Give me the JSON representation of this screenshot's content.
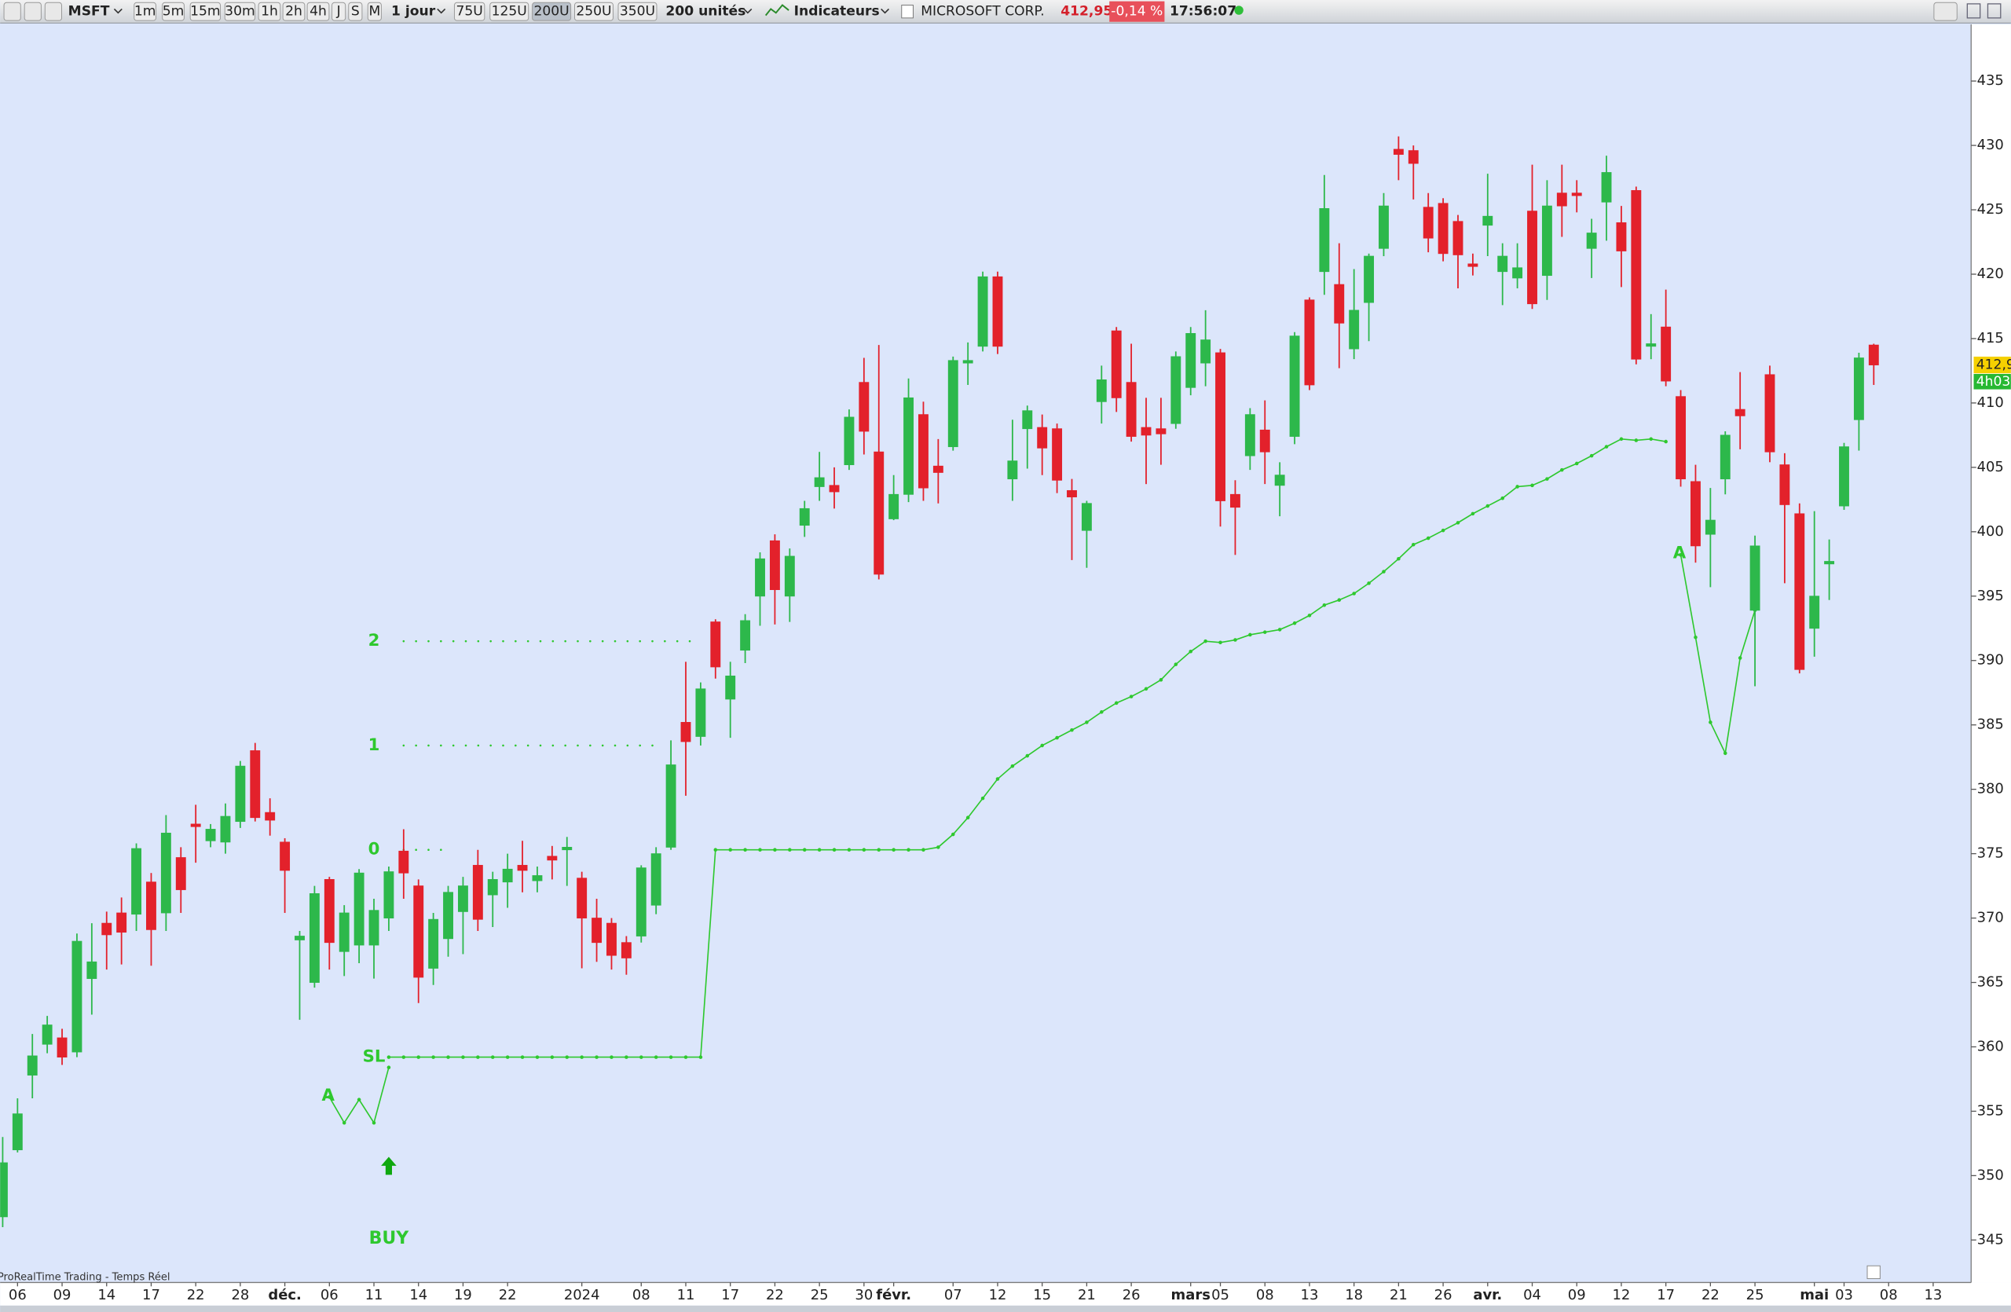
{
  "toolbar": {
    "symbol": "MSFT",
    "intervals": [
      "1m",
      "5m",
      "15m",
      "30m",
      "1h",
      "2h",
      "4h",
      "J",
      "S",
      "M"
    ],
    "period": "1 jour",
    "units": [
      "75U",
      "125U",
      "200U",
      "250U",
      "350U"
    ],
    "unit_count": "200 unités",
    "indicators": "Indicateurs",
    "instrument": "MICROSOFT CORP.",
    "price": "412,95",
    "change": "-0,14 %",
    "time": "17:56:07"
  },
  "footer": "ProRealTime Trading - Temps Réel",
  "chart_data": {
    "type": "candlestick",
    "categories": [
      null,
      "06",
      null,
      null,
      "09",
      null,
      null,
      "14",
      null,
      null,
      "17",
      null,
      null,
      "22",
      null,
      null,
      "28",
      null,
      null,
      "déc.",
      null,
      null,
      "06",
      null,
      null,
      "11",
      null,
      null,
      "14",
      null,
      null,
      "19",
      null,
      null,
      "22",
      null,
      null,
      null,
      null,
      "2024",
      null,
      null,
      null,
      "08",
      null,
      null,
      "11",
      null,
      null,
      "17",
      null,
      null,
      "22",
      null,
      null,
      "25",
      null,
      null,
      "30",
      null,
      "févr.",
      null,
      null,
      null,
      "07",
      null,
      null,
      "12",
      null,
      null,
      "15",
      null,
      null,
      "21",
      null,
      null,
      "26",
      null,
      null,
      null,
      "mars",
      null,
      "05",
      null,
      null,
      "08",
      null,
      null,
      "13",
      null,
      null,
      "18",
      null,
      null,
      "21",
      null,
      null,
      "26",
      null,
      null,
      "avr.",
      null,
      null,
      "04",
      null,
      null,
      "09",
      null,
      null,
      "12",
      null,
      null,
      "17",
      null,
      null,
      "22",
      null,
      null,
      "25",
      null,
      null,
      null,
      "mai",
      null,
      "03",
      null,
      null,
      "08",
      null,
      null,
      "13"
    ],
    "open": [
      346.8,
      352,
      357.8,
      360.2,
      360.7,
      359.6,
      365.3,
      369.6,
      370.4,
      370.3,
      372.8,
      370.4,
      374.7,
      377.3,
      376,
      375.9,
      377.5,
      383,
      378.2,
      375.9,
      368.3,
      365,
      373,
      367.4,
      367.9,
      367.9,
      370,
      375.2,
      372.5,
      366.1,
      368.4,
      370.5,
      374.1,
      371.8,
      372.8,
      374.1,
      372.9,
      374.8,
      375.3,
      373.1,
      370,
      369.6,
      368.1,
      368.6,
      371,
      375.5,
      385.2,
      384.1,
      393,
      387,
      390.8,
      395,
      399.3,
      395,
      400.5,
      403.5,
      403.6,
      405.2,
      411.6,
      406.2,
      401,
      402.9,
      409.1,
      405.1,
      406.6,
      413.1,
      414.4,
      419.8,
      404.1,
      408,
      408.1,
      408,
      403.2,
      400.1,
      410.1,
      415.6,
      411.6,
      408.1,
      408,
      408.4,
      411.2,
      413.1,
      413.9,
      402.9,
      405.9,
      407.9,
      403.6,
      407.4,
      418,
      420.2,
      419.2,
      414.2,
      417.8,
      422,
      429.7,
      429.6,
      425.2,
      425.5,
      424.1,
      420.8,
      423.8,
      420.2,
      419.7,
      424.9,
      419.9,
      426.3,
      426.3,
      422,
      425.6,
      424,
      426.5,
      414.4,
      415.9,
      410.5,
      403.9,
      399.8,
      404.1,
      409.5,
      393.9,
      412.2,
      405.2,
      401.4,
      392.5,
      397.5,
      402,
      408.7,
      414.5,
      null,
      null,
      null,
      null
    ],
    "high": [
      353,
      356,
      361,
      362.4,
      361.4,
      368.8,
      369.6,
      370.5,
      371.6,
      375.8,
      373.5,
      378,
      375.5,
      378.8,
      377.3,
      378.9,
      382.2,
      383.6,
      379.3,
      376.2,
      369,
      372.5,
      373.2,
      371,
      373.8,
      371.5,
      374,
      376.9,
      373,
      370.4,
      372.5,
      373.2,
      375.3,
      373.6,
      375,
      376,
      374,
      375.6,
      376.3,
      373.6,
      371.5,
      370,
      368.6,
      374.1,
      375.5,
      383.8,
      389.9,
      388.3,
      393.2,
      389.9,
      393.6,
      398.4,
      399.8,
      398.7,
      402.4,
      406.2,
      405,
      409.5,
      413.5,
      414.5,
      404.4,
      411.9,
      410.1,
      407.2,
      413.6,
      414.7,
      420.2,
      420.2,
      408.7,
      409.8,
      409.1,
      408.4,
      404.1,
      402.4,
      412.9,
      415.9,
      414.6,
      410.4,
      410.4,
      414,
      415.9,
      417.2,
      414.2,
      404,
      409.6,
      410.2,
      405.4,
      415.5,
      418.2,
      427.7,
      422.4,
      420.4,
      421.6,
      426.3,
      430.7,
      430,
      426.3,
      425.9,
      424.6,
      421.6,
      427.8,
      422.4,
      422.4,
      428.5,
      427.3,
      428.5,
      427.3,
      424.3,
      429.2,
      425.3,
      426.8,
      416.9,
      418.8,
      411,
      405.2,
      403.4,
      407.8,
      412.4,
      399.7,
      412.9,
      406.1,
      402.2,
      401.6,
      399.4,
      406.9,
      413.9,
      414.6,
      null,
      null,
      null,
      null
    ],
    "low": [
      346,
      351.8,
      356,
      359.5,
      358.6,
      359.2,
      362.5,
      366,
      366.4,
      369,
      366.3,
      369,
      370.4,
      374.3,
      375.5,
      375,
      377,
      377.5,
      376.4,
      370.4,
      362.1,
      364.6,
      366,
      365.5,
      366.5,
      365.3,
      369,
      371.5,
      363.4,
      364.8,
      367,
      367.2,
      369,
      369.3,
      370.8,
      372,
      372,
      373,
      372.5,
      366.1,
      366.6,
      366,
      365.6,
      368.1,
      370.3,
      375.3,
      379.5,
      383.4,
      388.6,
      384,
      389.8,
      392.7,
      392.8,
      393,
      399.6,
      402.4,
      401.8,
      404.8,
      406,
      396.3,
      400.9,
      402.3,
      402.4,
      402.2,
      406.3,
      411.4,
      414,
      413.8,
      402.4,
      404.9,
      404.4,
      403,
      397.8,
      397.2,
      408.4,
      409.3,
      407,
      403.7,
      405.2,
      408,
      410.6,
      411.3,
      400.4,
      398.2,
      404.8,
      403.7,
      401.2,
      406.8,
      411,
      418.4,
      412.7,
      413.4,
      414.8,
      421.4,
      427.3,
      425.8,
      421.7,
      421,
      418.9,
      419.9,
      421.4,
      417.6,
      418.9,
      417.3,
      418,
      422.9,
      424.8,
      419.7,
      422.6,
      419,
      413,
      413.4,
      411.3,
      403.5,
      397.6,
      395.7,
      402.9,
      406.4,
      388,
      405.4,
      396,
      389,
      390.3,
      394.7,
      401.7,
      406.3,
      411.4,
      null,
      null,
      null,
      null
    ],
    "close": [
      351,
      354.8,
      359.3,
      361.7,
      359.2,
      368.2,
      366.6,
      368.7,
      368.9,
      375.4,
      369.1,
      376.6,
      372.2,
      377.1,
      376.9,
      377.9,
      381.8,
      377.8,
      377.6,
      373.7,
      368.6,
      371.9,
      368.1,
      370.4,
      373.5,
      370.6,
      373.6,
      373.5,
      365.4,
      369.9,
      372,
      372.5,
      369.9,
      373,
      373.8,
      373.7,
      373.3,
      374.5,
      375.5,
      370,
      368.1,
      367.1,
      366.9,
      373.9,
      375,
      381.9,
      383.7,
      387.8,
      389.5,
      388.8,
      393.1,
      397.9,
      395.5,
      398.1,
      401.8,
      404.2,
      403.1,
      408.9,
      407.8,
      396.7,
      402.9,
      410.4,
      403.4,
      404.6,
      413.3,
      413.3,
      419.8,
      414.4,
      405.5,
      409.4,
      406.5,
      404,
      402.7,
      402.2,
      411.8,
      410.4,
      407.4,
      407.5,
      407.6,
      413.6,
      415.4,
      414.9,
      402.4,
      401.9,
      409.1,
      406.2,
      404.4,
      415.2,
      411.4,
      425.1,
      416.2,
      417.2,
      421.4,
      425.3,
      429.3,
      428.6,
      422.8,
      421.6,
      421.5,
      420.6,
      424.5,
      421.4,
      420.5,
      417.7,
      425.3,
      425.3,
      426.1,
      423.2,
      427.9,
      421.8,
      413.4,
      414.6,
      411.7,
      404.1,
      398.9,
      400.9,
      407.5,
      409,
      398.9,
      406.2,
      402.1,
      389.3,
      395,
      397.7,
      406.6,
      413.5,
      412.95,
      null,
      null,
      null,
      null
    ],
    "up_color": "#2db84b",
    "down_color": "#e3212b",
    "ylim": [
      341.7,
      439.3
    ],
    "yticks": [
      345,
      350,
      355,
      360,
      365,
      370,
      375,
      380,
      385,
      390,
      395,
      400,
      405,
      410,
      415,
      420,
      425,
      430,
      435
    ],
    "grid": false,
    "indicator": {
      "color": "#2ec82e",
      "values": [
        null,
        null,
        null,
        null,
        null,
        null,
        null,
        null,
        null,
        null,
        null,
        null,
        null,
        null,
        null,
        null,
        null,
        null,
        null,
        null,
        null,
        null,
        null,
        null,
        null,
        null,
        359.2,
        359.2,
        359.2,
        359.2,
        359.2,
        359.2,
        359.2,
        359.2,
        359.2,
        359.2,
        359.2,
        359.2,
        359.2,
        359.2,
        359.2,
        359.2,
        359.2,
        359.2,
        359.2,
        359.2,
        359.2,
        359.2,
        375.3,
        375.3,
        375.3,
        375.3,
        375.3,
        375.3,
        375.3,
        375.3,
        375.3,
        375.3,
        375.3,
        375.3,
        375.3,
        375.3,
        375.3,
        375.5,
        376.5,
        377.8,
        379.3,
        380.8,
        381.8,
        382.6,
        383.4,
        384,
        384.6,
        385.2,
        386,
        386.7,
        387.2,
        387.8,
        388.5,
        389.7,
        390.7,
        391.5,
        391.4,
        391.6,
        392,
        392.2,
        392.4,
        392.9,
        393.5,
        394.3,
        394.7,
        395.2,
        396,
        396.9,
        397.9,
        399,
        399.5,
        400.1,
        400.7,
        401.4,
        402,
        402.6,
        403.5,
        403.6,
        404.1,
        404.8,
        405.3,
        405.9,
        406.6,
        407.2,
        407.1,
        407.2,
        407,
        null,
        null,
        null,
        null,
        null,
        null,
        null,
        null,
        null,
        null,
        null,
        null,
        null,
        null,
        null,
        null,
        null,
        null
      ]
    },
    "pattern": {
      "labels": [
        "A",
        "A"
      ],
      "values": [
        null,
        null,
        null,
        null,
        null,
        null,
        null,
        null,
        null,
        null,
        null,
        null,
        null,
        null,
        null,
        null,
        null,
        null,
        null,
        null,
        null,
        null,
        356.1,
        354.1,
        355.9,
        354.1,
        358.4,
        null,
        null,
        null,
        null,
        null,
        null,
        null,
        null,
        null,
        null,
        null,
        null,
        null,
        null,
        null,
        null,
        null,
        null,
        null,
        null,
        null,
        null,
        null,
        null,
        null,
        null,
        null,
        null,
        null,
        null,
        null,
        null,
        null,
        null,
        null,
        null,
        null,
        null,
        null,
        null,
        null,
        null,
        null,
        null,
        null,
        null,
        null,
        null,
        null,
        null,
        null,
        null,
        null,
        null,
        null,
        null,
        null,
        null,
        null,
        null,
        null,
        null,
        null,
        null,
        null,
        null,
        null,
        null,
        null,
        null,
        null,
        null,
        null,
        null,
        null,
        null,
        null,
        null,
        null,
        null,
        null,
        null,
        null,
        null,
        null,
        null,
        398.2,
        391.8,
        385.2,
        382.8,
        390.2,
        393.9,
        null,
        null,
        null,
        null,
        null,
        null,
        null,
        null,
        null,
        null,
        null,
        null,
        null
      ]
    },
    "levels": [
      {
        "label": "2",
        "value": 391.5
      },
      {
        "label": "1",
        "value": 383.4
      },
      {
        "label": "0",
        "value": 375.3
      },
      {
        "label": "SL",
        "value": 359.2
      }
    ],
    "signal": "BUY",
    "last_price_label": "412,9",
    "countdown": "4h03"
  }
}
